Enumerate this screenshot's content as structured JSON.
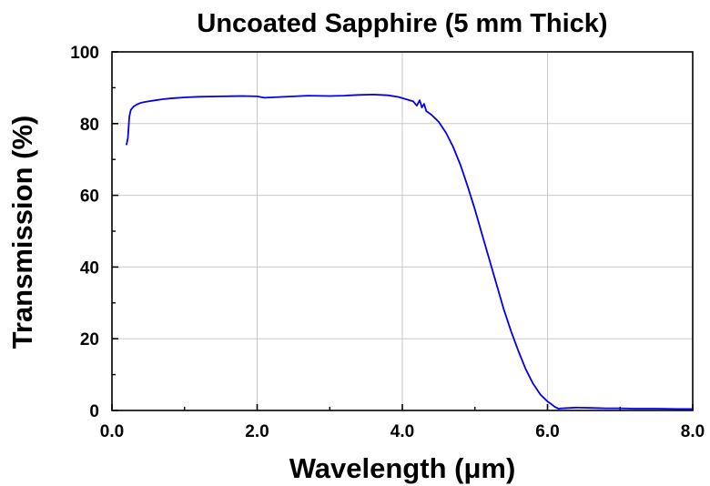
{
  "chart_data": {
    "type": "line",
    "title": "Uncoated Sapphire (5 mm Thick)",
    "xlabel": "Wavelength (μm)",
    "ylabel": "Transmission (%)",
    "xlim": [
      0,
      8
    ],
    "ylim": [
      0,
      100
    ],
    "x_ticks": [
      0,
      2,
      4,
      6,
      8
    ],
    "x_tick_labels": [
      "0.0",
      "2.0",
      "4.0",
      "6.0",
      "8.0"
    ],
    "y_ticks": [
      0,
      20,
      40,
      60,
      80,
      100
    ],
    "y_tick_labels": [
      "0",
      "20",
      "40",
      "60",
      "80",
      "100"
    ],
    "grid": true,
    "series": [
      {
        "color": "#0000ee",
        "points": [
          [
            0.2,
            74.0
          ],
          [
            0.22,
            76.0
          ],
          [
            0.24,
            82.0
          ],
          [
            0.26,
            83.8
          ],
          [
            0.3,
            84.8
          ],
          [
            0.35,
            85.4
          ],
          [
            0.4,
            85.8
          ],
          [
            0.5,
            86.2
          ],
          [
            0.6,
            86.5
          ],
          [
            0.7,
            86.8
          ],
          [
            0.8,
            87.0
          ],
          [
            1.0,
            87.3
          ],
          [
            1.2,
            87.5
          ],
          [
            1.5,
            87.6
          ],
          [
            1.8,
            87.7
          ],
          [
            2.0,
            87.6
          ],
          [
            2.1,
            87.2
          ],
          [
            2.3,
            87.4
          ],
          [
            2.5,
            87.6
          ],
          [
            2.7,
            87.8
          ],
          [
            3.0,
            87.7
          ],
          [
            3.2,
            87.8
          ],
          [
            3.4,
            88.0
          ],
          [
            3.6,
            88.1
          ],
          [
            3.8,
            87.9
          ],
          [
            3.95,
            87.4
          ],
          [
            4.05,
            86.8
          ],
          [
            4.15,
            86.2
          ],
          [
            4.2,
            85.0
          ],
          [
            4.24,
            86.5
          ],
          [
            4.27,
            84.5
          ],
          [
            4.3,
            85.5
          ],
          [
            4.33,
            83.5
          ],
          [
            4.4,
            82.5
          ],
          [
            4.5,
            80.5
          ],
          [
            4.6,
            77.5
          ],
          [
            4.7,
            73.5
          ],
          [
            4.8,
            68.5
          ],
          [
            4.9,
            62.5
          ],
          [
            5.0,
            56.0
          ],
          [
            5.1,
            49.0
          ],
          [
            5.2,
            42.0
          ],
          [
            5.3,
            35.0
          ],
          [
            5.4,
            28.0
          ],
          [
            5.5,
            22.0
          ],
          [
            5.6,
            16.5
          ],
          [
            5.7,
            11.5
          ],
          [
            5.8,
            7.5
          ],
          [
            5.9,
            4.5
          ],
          [
            6.0,
            2.5
          ],
          [
            6.05,
            1.8
          ],
          [
            6.1,
            1.0
          ],
          [
            6.15,
            0.5
          ],
          [
            6.2,
            0.6
          ],
          [
            6.4,
            0.8
          ],
          [
            6.6,
            0.7
          ],
          [
            6.8,
            0.6
          ],
          [
            7.0,
            0.6
          ],
          [
            7.2,
            0.5
          ],
          [
            7.5,
            0.5
          ],
          [
            7.8,
            0.4
          ],
          [
            8.0,
            0.4
          ]
        ]
      }
    ]
  }
}
